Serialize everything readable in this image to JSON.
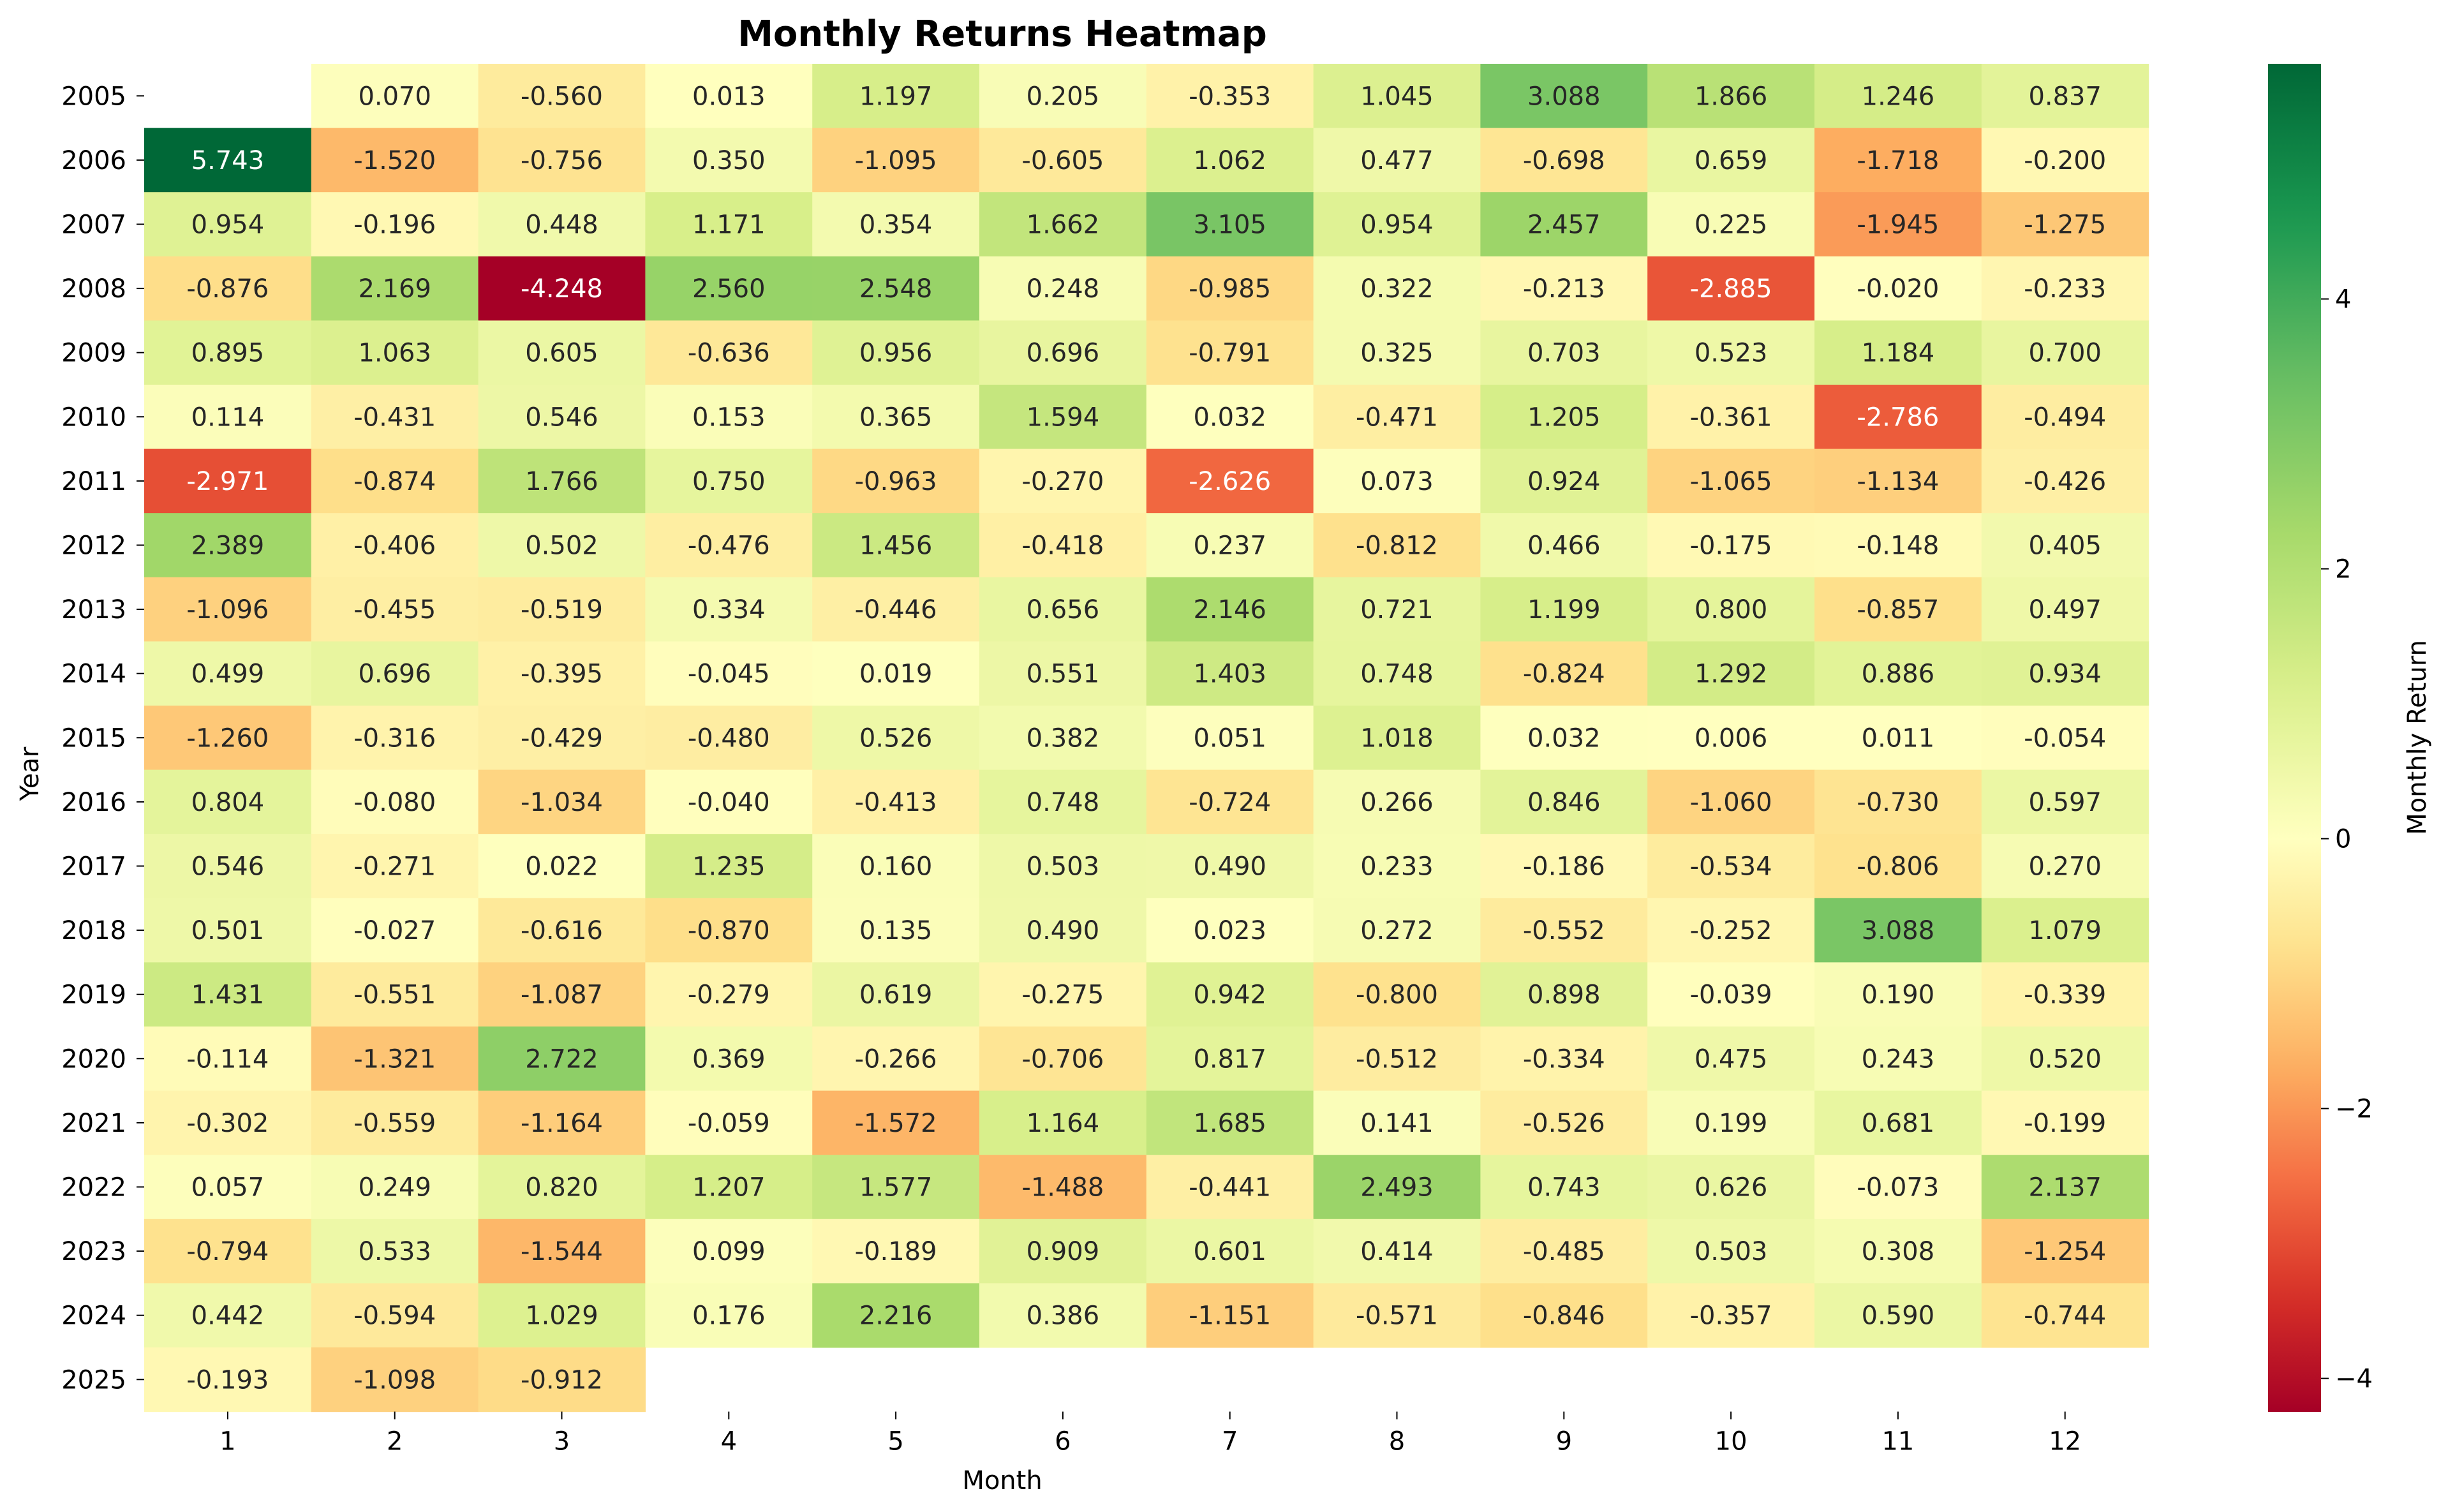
{
  "chart_data": {
    "type": "heatmap",
    "title": "Monthly Returns Heatmap",
    "xlabel": "Month",
    "ylabel": "Year",
    "colorbar_label": "Monthly Return",
    "colormap": "RdYlGn",
    "value_range": [
      -4.248,
      5.743
    ],
    "colorbar_ticks": [
      "−4",
      "−2",
      "0",
      "2",
      "4"
    ],
    "colorbar_tick_values": [
      -4,
      -2,
      0,
      2,
      4
    ],
    "x_categories": [
      "1",
      "2",
      "3",
      "4",
      "5",
      "6",
      "7",
      "8",
      "9",
      "10",
      "11",
      "12"
    ],
    "y_categories": [
      "2005",
      "2006",
      "2007",
      "2008",
      "2009",
      "2010",
      "2011",
      "2012",
      "2013",
      "2014",
      "2015",
      "2016",
      "2017",
      "2018",
      "2019",
      "2020",
      "2021",
      "2022",
      "2023",
      "2024",
      "2025"
    ],
    "values": [
      [
        null,
        0.07,
        -0.56,
        0.013,
        1.197,
        0.205,
        -0.353,
        1.045,
        3.088,
        1.866,
        1.246,
        0.837
      ],
      [
        5.743,
        -1.52,
        -0.756,
        0.35,
        -1.095,
        -0.605,
        1.062,
        0.477,
        -0.698,
        0.659,
        -1.718,
        -0.2
      ],
      [
        0.954,
        -0.196,
        0.448,
        1.171,
        0.354,
        1.662,
        3.105,
        0.954,
        2.457,
        0.225,
        -1.945,
        -1.275
      ],
      [
        -0.876,
        2.169,
        -4.248,
        2.56,
        2.548,
        0.248,
        -0.985,
        0.322,
        -0.213,
        -2.885,
        -0.02,
        -0.233
      ],
      [
        0.895,
        1.063,
        0.605,
        -0.636,
        0.956,
        0.696,
        -0.791,
        0.325,
        0.703,
        0.523,
        1.184,
        0.7
      ],
      [
        0.114,
        -0.431,
        0.546,
        0.153,
        0.365,
        1.594,
        0.032,
        -0.471,
        1.205,
        -0.361,
        -2.786,
        -0.494
      ],
      [
        -2.971,
        -0.874,
        1.766,
        0.75,
        -0.963,
        -0.27,
        -2.626,
        0.073,
        0.924,
        -1.065,
        -1.134,
        -0.426
      ],
      [
        2.389,
        -0.406,
        0.502,
        -0.476,
        1.456,
        -0.418,
        0.237,
        -0.812,
        0.466,
        -0.175,
        -0.148,
        0.405
      ],
      [
        -1.096,
        -0.455,
        -0.519,
        0.334,
        -0.446,
        0.656,
        2.146,
        0.721,
        1.199,
        0.8,
        -0.857,
        0.497
      ],
      [
        0.499,
        0.696,
        -0.395,
        -0.045,
        0.019,
        0.551,
        1.403,
        0.748,
        -0.824,
        1.292,
        0.886,
        0.934
      ],
      [
        -1.26,
        -0.316,
        -0.429,
        -0.48,
        0.526,
        0.382,
        0.051,
        1.018,
        0.032,
        0.006,
        0.011,
        -0.054
      ],
      [
        0.804,
        -0.08,
        -1.034,
        -0.04,
        -0.413,
        0.748,
        -0.724,
        0.266,
        0.846,
        -1.06,
        -0.73,
        0.597
      ],
      [
        0.546,
        -0.271,
        0.022,
        1.235,
        0.16,
        0.503,
        0.49,
        0.233,
        -0.186,
        -0.534,
        -0.806,
        0.27
      ],
      [
        0.501,
        -0.027,
        -0.616,
        -0.87,
        0.135,
        0.49,
        0.023,
        0.272,
        -0.552,
        -0.252,
        3.088,
        1.079
      ],
      [
        1.431,
        -0.551,
        -1.087,
        -0.279,
        0.619,
        -0.275,
        0.942,
        -0.8,
        0.898,
        -0.039,
        0.19,
        -0.339
      ],
      [
        -0.114,
        -1.321,
        2.722,
        0.369,
        -0.266,
        -0.706,
        0.817,
        -0.512,
        -0.334,
        0.475,
        0.243,
        0.52
      ],
      [
        -0.302,
        -0.559,
        -1.164,
        -0.059,
        -1.572,
        1.164,
        1.685,
        0.141,
        -0.526,
        0.199,
        0.681,
        -0.199
      ],
      [
        0.057,
        0.249,
        0.82,
        1.207,
        1.577,
        -1.488,
        -0.441,
        2.493,
        0.743,
        0.626,
        -0.073,
        2.137
      ],
      [
        -0.794,
        0.533,
        -1.544,
        0.099,
        -0.189,
        0.909,
        0.601,
        0.414,
        -0.485,
        0.503,
        0.308,
        -1.254
      ],
      [
        0.442,
        -0.594,
        1.029,
        0.176,
        2.216,
        0.386,
        -1.151,
        -0.571,
        -0.846,
        -0.357,
        0.59,
        -0.744
      ],
      [
        -0.193,
        -1.098,
        -0.912,
        null,
        null,
        null,
        null,
        null,
        null,
        null,
        null,
        null
      ]
    ],
    "value_format": "3 decimals",
    "legend": "colorbar-right"
  }
}
